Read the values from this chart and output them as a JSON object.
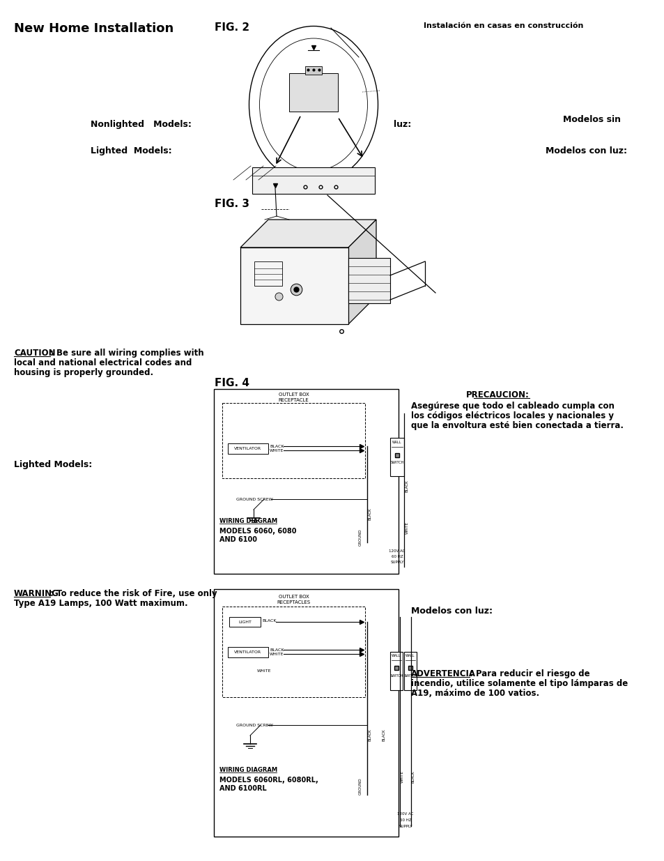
{
  "title": "New Home Installation",
  "fig2_label": "FIG. 2",
  "fig3_label": "FIG. 3",
  "fig4_label": "FIG. 4",
  "spanish_title": "Instalación en casas en construcción",
  "nonlighted": "Nonlighted   Models:",
  "lighted": "Lighted  Models:",
  "lighted2": "Lighted Models:",
  "modelos_sin": "Modelos sin",
  "luz": "luz:",
  "modelos_con_luz": "Modelos con luz:",
  "modelos_con_luz2": "Modelos con luz:",
  "bg_color": "#ffffff",
  "text_color": "#000000"
}
